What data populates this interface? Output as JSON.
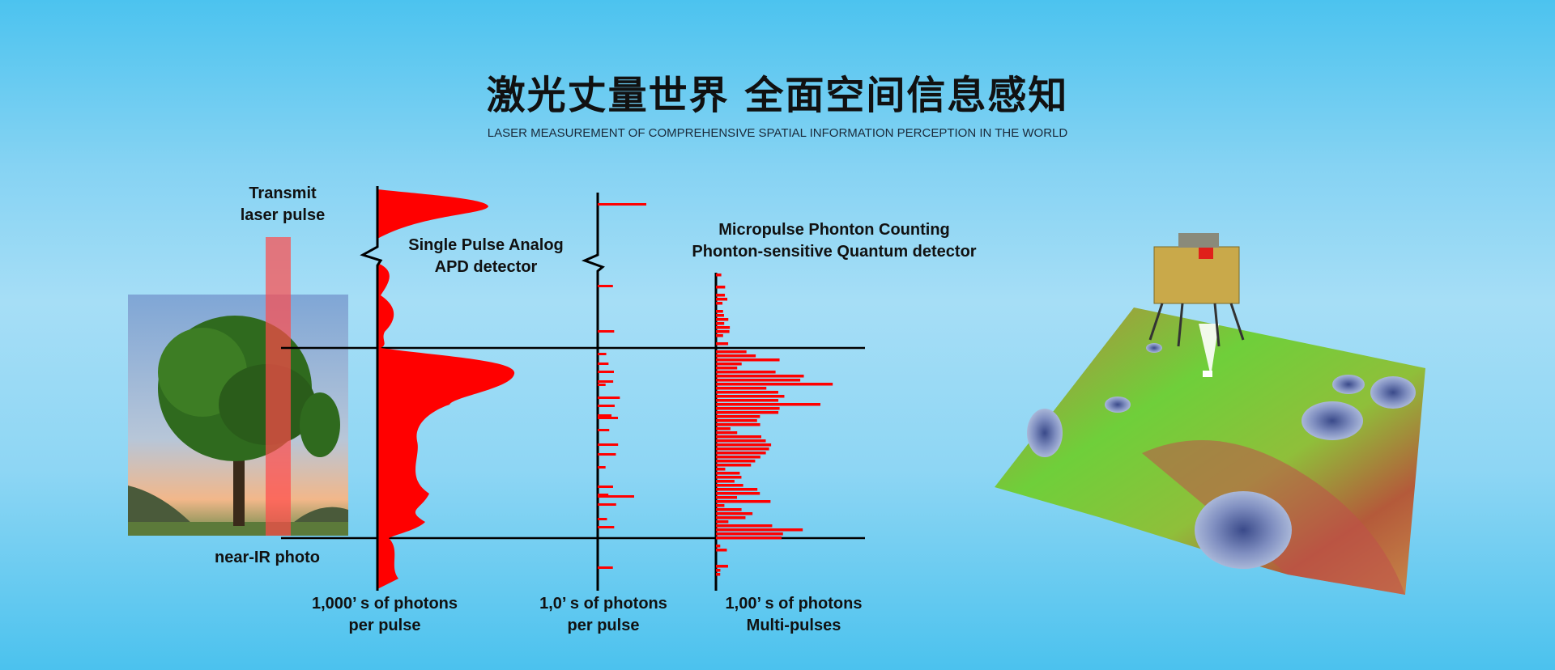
{
  "header": {
    "title": "激光丈量世界 全面空间信息感知",
    "subtitle": "LASER MEASUREMENT OF COMPREHENSIVE SPATIAL INFORMATION PERCEPTION IN THE WORLD"
  },
  "diagram": {
    "transmit_label": [
      "Transmit",
      "laser pulse"
    ],
    "photo_label": "near-IR photo",
    "apd_label": [
      "Single Pulse Analog",
      "APD detector"
    ],
    "quantum_label": [
      "Micropulse Phonton Counting",
      "Phonton-sensitive Quantum detector"
    ],
    "axis_labels": [
      [
        "1,000’ s of photons",
        "per pulse"
      ],
      [
        "1,0’ s of photons",
        "per pulse"
      ],
      [
        "1,00’ s of photons",
        "Multi-pulses"
      ]
    ],
    "colors": {
      "signal": "#ff0000",
      "beam": "#ff5a5a",
      "axis": "#000000"
    }
  },
  "illustration": {
    "subject": "lunar-lander-terrain-map"
  }
}
